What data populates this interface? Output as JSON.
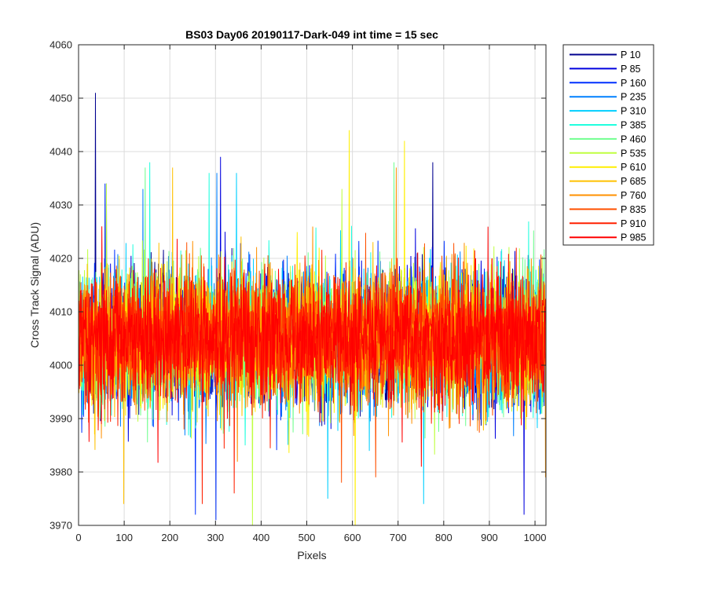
{
  "chart_data": {
    "type": "line",
    "title": "BS03 Day06 20190117-Dark-049 int time = 15 sec",
    "xlabel": "Pixels",
    "ylabel": "Cross Track Signal (ADU)",
    "xlim": [
      0,
      1024
    ],
    "ylim": [
      3970,
      4060
    ],
    "xticks": [
      0,
      100,
      200,
      300,
      400,
      500,
      600,
      700,
      800,
      900,
      1000
    ],
    "yticks": [
      3970,
      3980,
      3990,
      4000,
      4010,
      4020,
      4030,
      4040,
      4050,
      4060
    ],
    "grid": true,
    "legend_position": "outside-right",
    "x_points": 1024,
    "baseline_adu": 4005,
    "series": [
      {
        "name": "P 10",
        "color": "#00008F",
        "spikes": [
          [
            36,
            4051
          ],
          [
            775,
            4038
          ]
        ]
      },
      {
        "name": "P 85",
        "color": "#0000DF",
        "spikes": [
          [
            60,
            4034
          ],
          [
            310,
            4039
          ],
          [
            975,
            3972
          ]
        ]
      },
      {
        "name": "P 160",
        "color": "#0030FF",
        "spikes": [
          [
            57,
            4034
          ],
          [
            255,
            3972
          ],
          [
            300,
            3971
          ]
        ]
      },
      {
        "name": "P 235",
        "color": "#0080FF",
        "spikes": [
          [
            140,
            4033
          ],
          [
            302,
            4036
          ]
        ]
      },
      {
        "name": "P 310",
        "color": "#00CFFF",
        "spikes": [
          [
            545,
            3975
          ],
          [
            755,
            3974
          ],
          [
            345,
            4036
          ]
        ]
      },
      {
        "name": "P 385",
        "color": "#20FFDF",
        "spikes": [
          [
            155,
            4038
          ],
          [
            285,
            4036
          ]
        ]
      },
      {
        "name": "P 460",
        "color": "#70FF8F",
        "spikes": [
          [
            145,
            4037
          ],
          [
            690,
            4038
          ]
        ]
      },
      {
        "name": "P 535",
        "color": "#BFFF40",
        "spikes": [
          [
            380,
            3970
          ],
          [
            60,
            4034
          ]
        ]
      },
      {
        "name": "P 610",
        "color": "#FFEF00",
        "spikes": [
          [
            592,
            4044
          ],
          [
            605,
            3970
          ],
          [
            713,
            4042
          ]
        ]
      },
      {
        "name": "P 685",
        "color": "#FFC000",
        "spikes": [
          [
            98,
            3974
          ],
          [
            205,
            4037
          ]
        ]
      },
      {
        "name": "P 760",
        "color": "#FF9000",
        "spikes": [
          [
            695,
            4037
          ],
          [
            1022,
            3979
          ]
        ]
      },
      {
        "name": "P 835",
        "color": "#FF5000",
        "spikes": [
          [
            575,
            3978
          ],
          [
            650,
            3979
          ]
        ]
      },
      {
        "name": "P 910",
        "color": "#FF2000",
        "spikes": [
          [
            270,
            3974
          ],
          [
            340,
            3976
          ]
        ]
      },
      {
        "name": "P 985",
        "color": "#FF0000",
        "spikes": [
          [
            50,
            4026
          ],
          [
            750,
            3981
          ]
        ]
      }
    ]
  }
}
